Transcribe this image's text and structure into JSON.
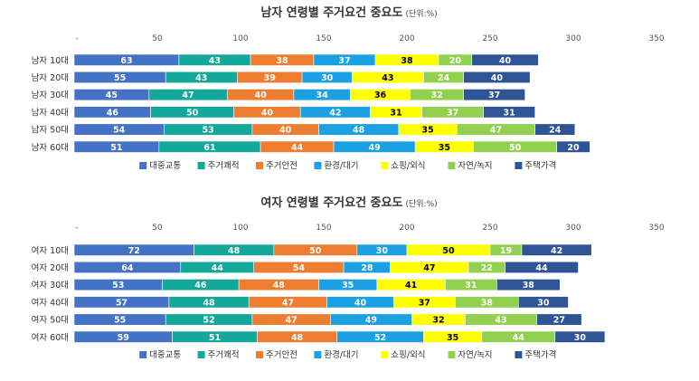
{
  "chart_data": [
    {
      "type": "bar",
      "orientation": "horizontal",
      "stacked": true,
      "title": "남자 연령별 주거요건 중요도",
      "unit": "(단위:%)",
      "categories": [
        "남자 10대",
        "남자 20대",
        "남자 30대",
        "남자 40대",
        "남자 50대",
        "남자 60대"
      ],
      "xlim": [
        0,
        350
      ],
      "xticks": [
        50,
        100,
        150,
        200,
        250,
        300,
        350
      ],
      "grid": false,
      "legend_position": "bottom",
      "series": [
        {
          "name": "대중교통",
          "color": "#4472C4",
          "label_color": "#ffffff",
          "values": [
            63,
            55,
            45,
            46,
            54,
            51
          ]
        },
        {
          "name": "주거쾌적",
          "color": "#14A89A",
          "label_color": "#ffffff",
          "values": [
            43,
            43,
            47,
            50,
            53,
            61
          ]
        },
        {
          "name": "주거안전",
          "color": "#ED7D31",
          "label_color": "#ffffff",
          "values": [
            38,
            39,
            40,
            40,
            40,
            44
          ]
        },
        {
          "name": "환경/대기",
          "color": "#1BA1E2",
          "label_color": "#ffffff",
          "values": [
            37,
            30,
            34,
            42,
            48,
            49
          ]
        },
        {
          "name": "쇼핑/외식",
          "color": "#FFFF00",
          "label_color": "#000000",
          "values": [
            38,
            43,
            36,
            31,
            35,
            35
          ]
        },
        {
          "name": "자연/녹지",
          "color": "#92D050",
          "label_color": "#ffffff",
          "values": [
            20,
            24,
            32,
            37,
            47,
            50
          ]
        },
        {
          "name": "주택가격",
          "color": "#2F5597",
          "label_color": "#ffffff",
          "values": [
            40,
            40,
            37,
            31,
            24,
            20
          ]
        }
      ]
    },
    {
      "type": "bar",
      "orientation": "horizontal",
      "stacked": true,
      "title": "여자 연령별 주거요건 중요도",
      "unit": "(단위:%)",
      "categories": [
        "여자 10대",
        "여자 20대",
        "여자 30대",
        "여자 40대",
        "여자 50대",
        "여자 60대"
      ],
      "xlim": [
        0,
        350
      ],
      "xticks": [
        50,
        100,
        150,
        200,
        250,
        300,
        350
      ],
      "grid": false,
      "legend_position": "bottom",
      "series": [
        {
          "name": "대중교통",
          "color": "#4472C4",
          "label_color": "#ffffff",
          "values": [
            72,
            64,
            53,
            57,
            55,
            59
          ]
        },
        {
          "name": "주거쾌적",
          "color": "#14A89A",
          "label_color": "#ffffff",
          "values": [
            48,
            44,
            46,
            48,
            52,
            51
          ]
        },
        {
          "name": "주거안전",
          "color": "#ED7D31",
          "label_color": "#ffffff",
          "values": [
            50,
            54,
            48,
            47,
            47,
            48
          ]
        },
        {
          "name": "환경/대기",
          "color": "#1BA1E2",
          "label_color": "#ffffff",
          "values": [
            30,
            28,
            35,
            40,
            49,
            52
          ]
        },
        {
          "name": "쇼핑/외식",
          "color": "#FFFF00",
          "label_color": "#000000",
          "values": [
            50,
            47,
            41,
            37,
            32,
            35
          ]
        },
        {
          "name": "자연/녹지",
          "color": "#92D050",
          "label_color": "#ffffff",
          "values": [
            19,
            22,
            31,
            38,
            43,
            44
          ]
        },
        {
          "name": "주택가격",
          "color": "#2F5597",
          "label_color": "#ffffff",
          "values": [
            42,
            44,
            38,
            30,
            27,
            30
          ]
        }
      ]
    }
  ]
}
